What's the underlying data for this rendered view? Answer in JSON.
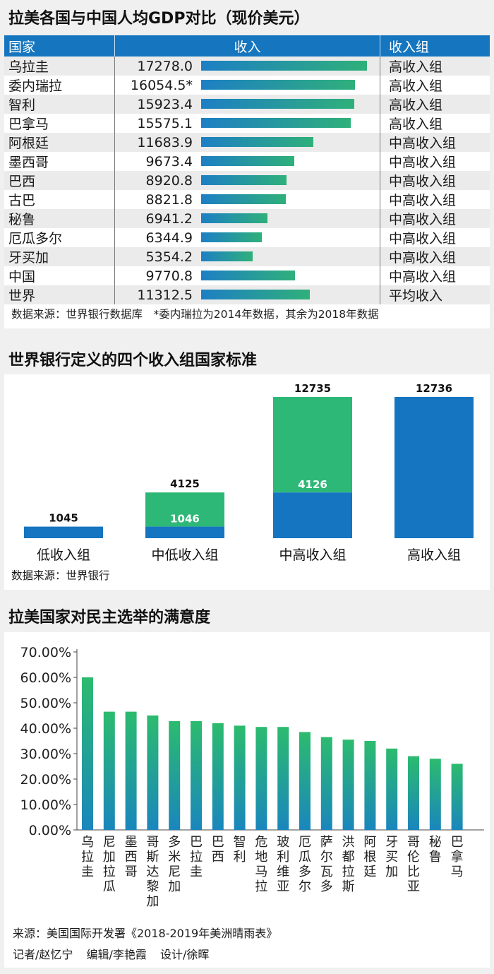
{
  "chart_data": [
    {
      "type": "table",
      "title": "拉美各国与中国人均GDP对比（现价美元）",
      "columns": [
        "国家",
        "收入",
        "收入组"
      ],
      "rows": [
        {
          "country": "乌拉圭",
          "value": 17278.0,
          "label": "17278.0",
          "group": "高收入组"
        },
        {
          "country": "委内瑞拉",
          "value": 16054.5,
          "label": "16054.5*",
          "group": "高收入组"
        },
        {
          "country": "智利",
          "value": 15923.4,
          "label": "15923.4",
          "group": "高收入组"
        },
        {
          "country": "巴拿马",
          "value": 15575.1,
          "label": "15575.1",
          "group": "高收入组"
        },
        {
          "country": "阿根廷",
          "value": 11683.9,
          "label": "11683.9",
          "group": "中高收入组"
        },
        {
          "country": "墨西哥",
          "value": 9673.4,
          "label": "9673.4",
          "group": "中高收入组"
        },
        {
          "country": "巴西",
          "value": 8920.8,
          "label": "8920.8",
          "group": "中高收入组"
        },
        {
          "country": "古巴",
          "value": 8821.8,
          "label": "8821.8",
          "group": "中高收入组"
        },
        {
          "country": "秘鲁",
          "value": 6941.2,
          "label": "6941.2",
          "group": "中高收入组"
        },
        {
          "country": "厄瓜多尔",
          "value": 6344.9,
          "label": "6344.9",
          "group": "中高收入组"
        },
        {
          "country": "牙买加",
          "value": 5354.2,
          "label": "5354.2",
          "group": "中高收入组"
        },
        {
          "country": "中国",
          "value": 9770.8,
          "label": "9770.8",
          "group": "中高收入组"
        },
        {
          "country": "世界",
          "value": 11312.5,
          "label": "11312.5",
          "group": "平均收入"
        }
      ],
      "note": "数据来源：世界银行数据库　*委内瑞拉为2014年数据，其余为2018年数据",
      "bar_gradient": [
        "#1d7fc4",
        "#2fb07a"
      ]
    },
    {
      "type": "bar",
      "title": "世界银行定义的四个收入组国家标准",
      "categories": [
        "低收入组",
        "中低收入组",
        "中高收入组",
        "高收入组"
      ],
      "ranges": [
        {
          "low": null,
          "high": 1045,
          "high_label": "1045",
          "low_label": ""
        },
        {
          "low": 1046,
          "high": 4125,
          "high_label": "4125",
          "low_label": "1046"
        },
        {
          "low": 4126,
          "high": 12735,
          "high_label": "12735",
          "low_label": "4126"
        },
        {
          "low": 12736,
          "high": null,
          "high_label": "12736",
          "low_label": ""
        }
      ],
      "colors": {
        "base": "#1575c0",
        "range": "#2db877"
      },
      "source": "数据来源：世界银行"
    },
    {
      "type": "bar",
      "title": "拉美国家对民主选举的满意度",
      "categories": [
        "乌拉圭",
        "尼加拉瓜",
        "墨西哥",
        "哥斯达黎加",
        "多米尼加",
        "巴拉圭",
        "巴西",
        "智利",
        "危地马拉",
        "玻利维亚",
        "厄瓜多尔",
        "萨尔瓦多",
        "洪都拉斯",
        "阿根廷",
        "牙买加",
        "哥伦比亚",
        "秘鲁",
        "巴拿马"
      ],
      "values": [
        0.6,
        0.465,
        0.465,
        0.45,
        0.428,
        0.428,
        0.42,
        0.41,
        0.405,
        0.405,
        0.385,
        0.365,
        0.355,
        0.35,
        0.32,
        0.29,
        0.28,
        0.26
      ],
      "ylim": [
        0,
        0.7
      ],
      "yticks": [
        "0.00%",
        "10.00%",
        "20.00%",
        "30.00%",
        "40.00%",
        "50.00%",
        "60.00%",
        "70.00%"
      ],
      "grid": false,
      "gradient": [
        "#2cbb6e",
        "#1a86bd"
      ],
      "source": "来源：美国国际开发署《2018-2019年美洲晴雨表》",
      "credits": [
        "记者/赵忆宁",
        "编辑/李艳霞",
        "设计/徐晖"
      ]
    }
  ]
}
